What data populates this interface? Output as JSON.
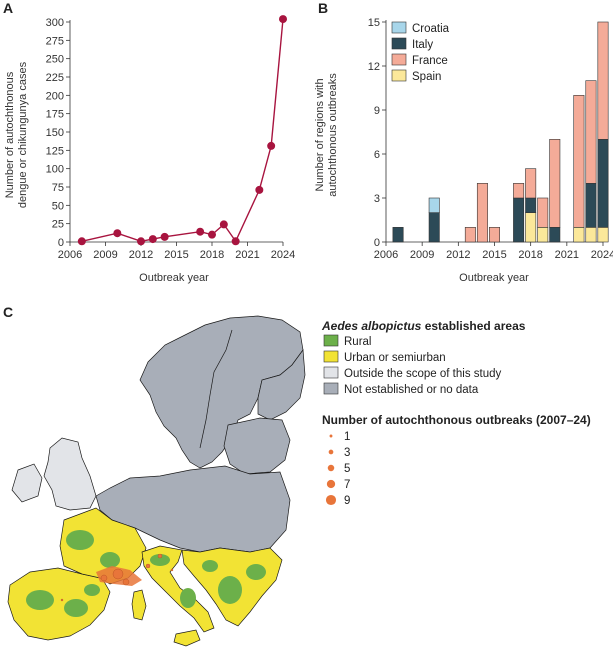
{
  "panels": {
    "a_letter": "A",
    "b_letter": "B",
    "c_letter": "C"
  },
  "chart_data": [
    {
      "type": "line",
      "x": [
        2007,
        2010,
        2012,
        2013,
        2014,
        2017,
        2018,
        2019,
        2020,
        2022,
        2023,
        2024
      ],
      "series": [
        {
          "values": [
            1,
            12,
            1,
            4,
            7,
            14,
            10,
            24,
            1,
            71,
            131,
            304
          ],
          "color": "#a8143f"
        }
      ],
      "xlabel": "Outbreak year",
      "ylabel_lines": [
        "Number of autochthonous",
        "dengue or chikungunya cases"
      ],
      "xlim": [
        2006,
        2024
      ],
      "ylim": [
        0,
        300
      ],
      "xticks": [
        2006,
        2009,
        2012,
        2015,
        2018,
        2021,
        2024
      ],
      "yticks": [
        0,
        25,
        50,
        75,
        100,
        125,
        150,
        175,
        200,
        225,
        250,
        275,
        300
      ]
    },
    {
      "type": "bar",
      "stacked": true,
      "x": [
        2007,
        2010,
        2012,
        2013,
        2014,
        2015,
        2017,
        2018,
        2019,
        2020,
        2022,
        2023,
        2024
      ],
      "series": [
        {
          "name": "Spain",
          "color": "#fbe89a",
          "values": [
            0,
            0,
            0,
            0,
            0,
            0,
            0,
            2,
            1,
            0,
            1,
            1,
            1
          ]
        },
        {
          "name": "Italy",
          "color": "#2c4a57",
          "values": [
            1,
            2,
            0,
            0,
            0,
            0,
            3,
            1,
            0,
            1,
            0,
            3,
            6
          ]
        },
        {
          "name": "France",
          "color": "#f4ab98",
          "values": [
            0,
            0,
            0,
            1,
            4,
            1,
            1,
            2,
            2,
            6,
            9,
            7,
            8
          ]
        },
        {
          "name": "Croatia",
          "color": "#a8d6ea",
          "values": [
            0,
            1,
            0,
            0,
            0,
            0,
            0,
            0,
            0,
            0,
            0,
            0,
            0
          ]
        }
      ],
      "legend_order": [
        "Croatia",
        "Italy",
        "France",
        "Spain"
      ],
      "xlabel": "Outbreak year",
      "ylabel_lines": [
        "Number of regions with",
        "autochthonous outbreaks"
      ],
      "xlim": [
        2006,
        2024
      ],
      "ylim": [
        0,
        15
      ],
      "xticks": [
        2006,
        2009,
        2012,
        2015,
        2018,
        2021,
        2024
      ],
      "yticks": [
        0,
        3,
        6,
        9,
        12,
        15
      ],
      "legend_position": "top-left"
    }
  ],
  "map": {
    "colors": {
      "sea": "#ffffff",
      "not_established": "#a8aeb8",
      "outside_scope": "#e2e4e8",
      "urban": "#f2e334",
      "rural": "#6cb04a",
      "outbreak": "#e8753a",
      "border": "#1a1a1a"
    },
    "legend": {
      "heading_italic": "Aedes albopictus",
      "heading_rest": " established areas",
      "items": [
        {
          "label": "Rural",
          "color": "#6cb04a"
        },
        {
          "label": "Urban or semiurban",
          "color": "#f2e334"
        },
        {
          "label": "Outside the scope of this study",
          "color": "#e2e4e8"
        },
        {
          "label": "Not established or no data",
          "color": "#a8aeb8"
        }
      ],
      "outbreak_heading": "Number of autochthonous outbreaks (2007–24)",
      "outbreak_items": [
        {
          "label": "1",
          "value": 1
        },
        {
          "label": "3",
          "value": 3
        },
        {
          "label": "5",
          "value": 5
        },
        {
          "label": "7",
          "value": 7
        },
        {
          "label": "9",
          "value": 9
        }
      ]
    }
  }
}
